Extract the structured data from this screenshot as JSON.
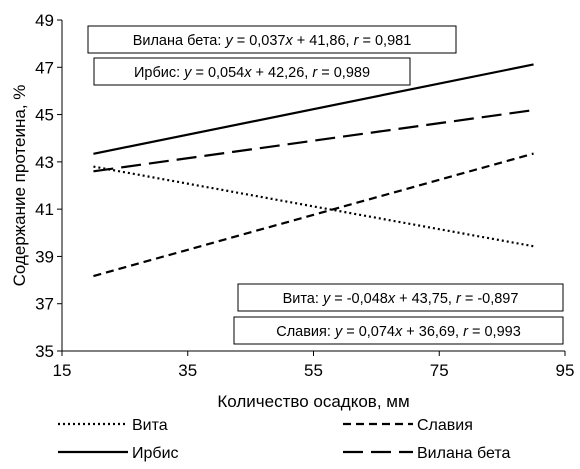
{
  "chart_data": {
    "type": "line",
    "xlabel": "Количество осадков, мм",
    "ylabel": "Содержание протеина, %",
    "xlim": [
      15,
      95
    ],
    "ylim": [
      35,
      49
    ],
    "xticks": [
      15,
      35,
      55,
      75,
      95
    ],
    "yticks": [
      35,
      37,
      39,
      41,
      43,
      45,
      47,
      49
    ],
    "grid": false,
    "legend_position": "bottom",
    "series": [
      {
        "name": "Вита",
        "style": "dotted",
        "color": "#000000",
        "x": [
          20,
          90
        ],
        "y": [
          42.8,
          39.43
        ],
        "equation": {
          "var_y": "y",
          "eq_rest": " = -0,048",
          "var_x": "x",
          "eq_tail": " + 43,75, ",
          "var_r": "r",
          "r_tail": " = -0,897"
        }
      },
      {
        "name": "Славия",
        "style": "dashed",
        "color": "#000000",
        "x": [
          20,
          90
        ],
        "y": [
          38.17,
          43.35
        ],
        "equation": {
          "var_y": "y",
          "eq_rest": " = 0,074",
          "var_x": "x",
          "eq_tail": " + 36,69, ",
          "var_r": "r",
          "r_tail": " = 0,993"
        }
      },
      {
        "name": "Ирбис",
        "style": "solid",
        "color": "#000000",
        "x": [
          20,
          90
        ],
        "y": [
          43.34,
          47.12
        ],
        "equation": {
          "var_y": "y",
          "eq_rest": " = 0,054",
          "var_x": "x",
          "eq_tail": " + 42,26, ",
          "var_r": "r",
          "r_tail": " = 0,989"
        }
      },
      {
        "name": "Вилана бета",
        "style": "longdash",
        "color": "#000000",
        "x": [
          20,
          90
        ],
        "y": [
          42.6,
          45.19
        ],
        "equation": {
          "var_y": "y",
          "eq_rest": " = 0,037",
          "var_x": "x",
          "eq_tail": " + 41,86, ",
          "var_r": "r",
          "r_tail": " = 0,981"
        }
      }
    ]
  }
}
